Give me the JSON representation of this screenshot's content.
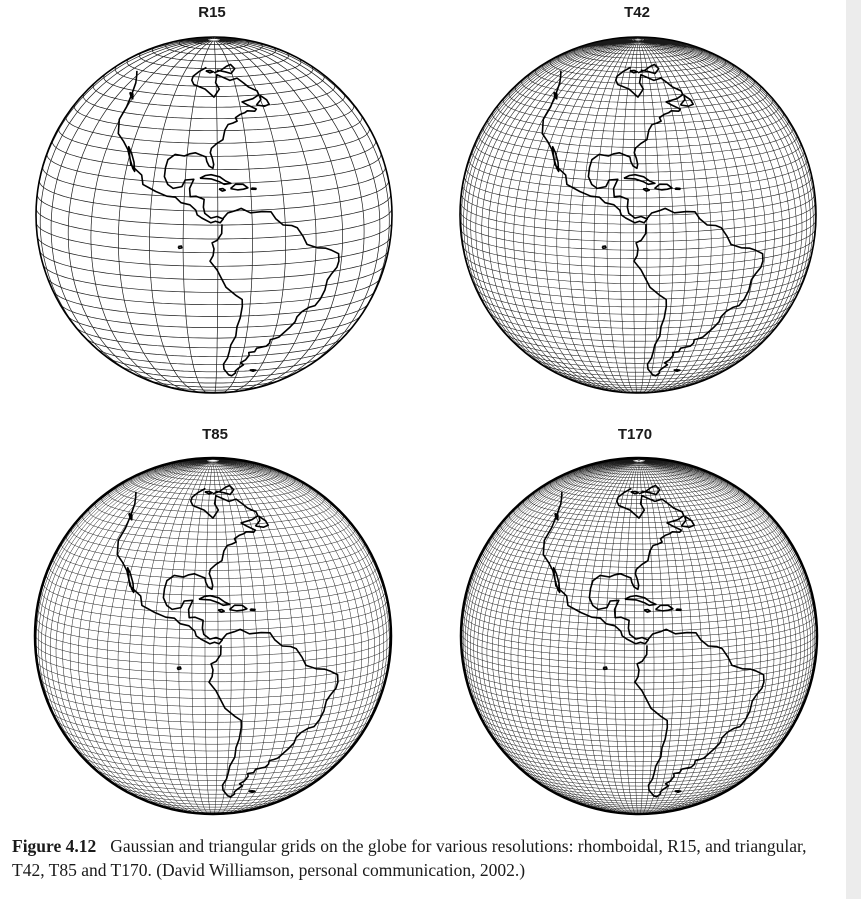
{
  "panels": [
    {
      "title": "R15",
      "lat_lines": 40,
      "lon_lines": 32
    },
    {
      "title": "T42",
      "lat_lines": 64,
      "lon_lines": 84
    },
    {
      "title": "T85",
      "lat_lines": 128,
      "lon_lines": 170
    },
    {
      "title": "T170",
      "lat_lines": 256,
      "lon_lines": 340
    }
  ],
  "caption": {
    "label": "Figure 4.12",
    "text": "Gaussian and triangular grids on the globe for various resolutions: rhomboidal, R15, and triangular, T42, T85 and T170. (David Williamson, personal communication, 2002.)"
  },
  "colors": {
    "grid": "#1a1a1a",
    "land": "#000000",
    "background": "#ffffff"
  }
}
